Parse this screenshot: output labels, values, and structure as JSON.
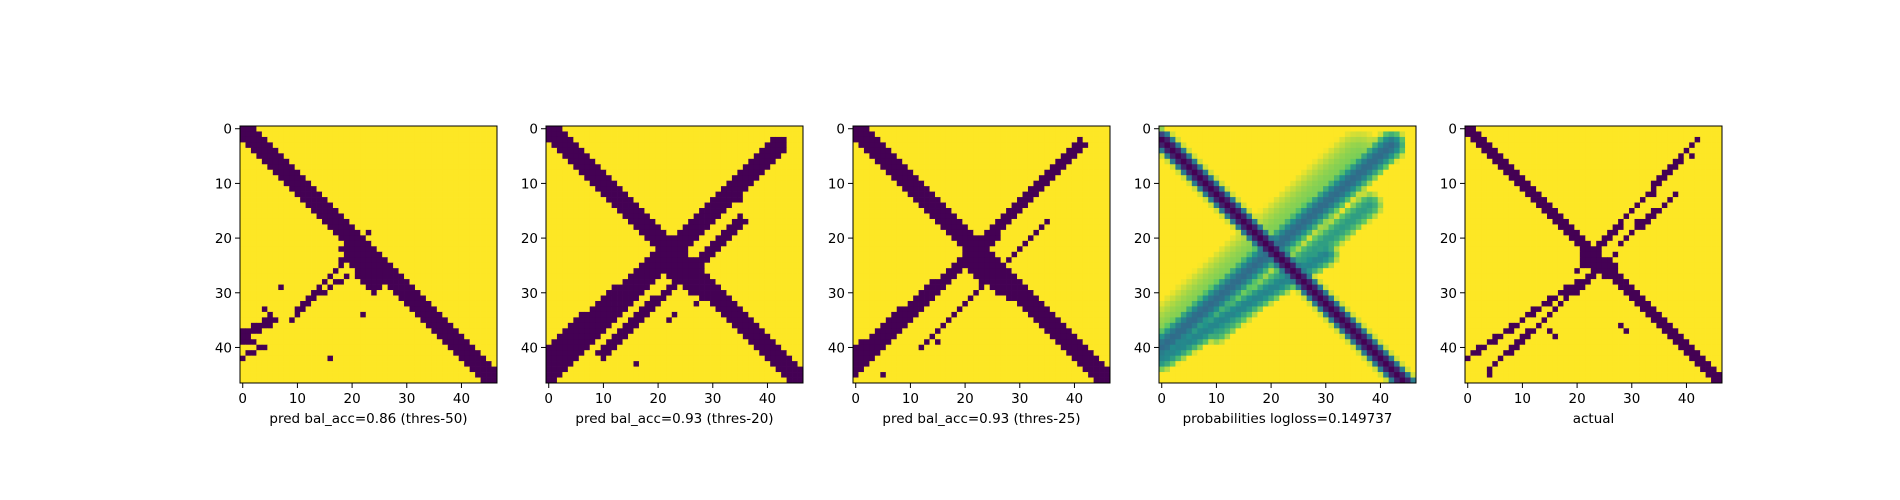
{
  "figure": {
    "background": "#ffffff"
  },
  "colormap": {
    "low": "#440154",
    "high": "#fde725"
  },
  "chart_data": [
    {
      "type": "heatmap",
      "xlabel": "pred bal_acc=0.86 (thres-50)",
      "grid_size": 47,
      "xlim": [
        -0.5,
        46.5
      ],
      "ylim": [
        46.5,
        -0.5
      ],
      "xticks": [
        0,
        10,
        20,
        30,
        40
      ],
      "yticks": [
        0,
        10,
        20,
        30,
        40
      ],
      "values": "binary prediction mask; dark = contact (0), yellow = 1",
      "bands": [
        {
          "from": [
            0,
            0
          ],
          "to": [
            46,
            46
          ],
          "width": 3,
          "value": 0
        },
        {
          "from": [
            20,
            22
          ],
          "to": [
            24,
            28
          ],
          "width": 4,
          "value": 0
        },
        {
          "from": [
            9,
            35
          ],
          "to": [
            23,
            19
          ],
          "width": 1,
          "value": 0
        },
        {
          "from": [
            0,
            38
          ],
          "to": [
            5,
            35
          ],
          "width": 2,
          "value": 0
        },
        {
          "from": [
            10,
            33
          ],
          "to": [
            19,
            27
          ],
          "width": 1,
          "value": 0
        },
        {
          "from": [
            0,
            42
          ],
          "to": [
            3,
            40
          ],
          "width": 1,
          "value": 0
        },
        {
          "from": [
            4,
            40
          ],
          "to": [
            1,
            39
          ],
          "width": 1,
          "value": 0
        }
      ],
      "spots": [
        [
          4,
          33
        ],
        [
          7,
          29
        ],
        [
          16,
          42
        ],
        [
          22,
          34
        ],
        [
          26,
          26
        ],
        [
          27,
          25
        ]
      ]
    },
    {
      "type": "heatmap",
      "xlabel": "pred bal_acc=0.93 (thres-20)",
      "grid_size": 47,
      "xlim": [
        -0.5,
        46.5
      ],
      "ylim": [
        46.5,
        -0.5
      ],
      "xticks": [
        0,
        10,
        20,
        30,
        40
      ],
      "yticks": [
        0,
        10,
        20,
        30,
        40
      ],
      "bands": [
        {
          "from": [
            0,
            0
          ],
          "to": [
            46,
            46
          ],
          "width": 4,
          "value": 0
        },
        {
          "from": [
            0,
            45
          ],
          "to": [
            42,
            3
          ],
          "width": 3,
          "value": 0
        },
        {
          "from": [
            0,
            41
          ],
          "to": [
            26,
            19
          ],
          "width": 3,
          "value": 0
        },
        {
          "from": [
            10,
            41
          ],
          "to": [
            35,
            17
          ],
          "width": 2,
          "value": 0
        },
        {
          "from": [
            22,
            25
          ],
          "to": [
            28,
            29
          ],
          "width": 4,
          "value": 0
        }
      ],
      "spots": [
        [
          16,
          43
        ],
        [
          23,
          34
        ],
        [
          27,
          32
        ],
        [
          22,
          35
        ],
        [
          35,
          13
        ]
      ]
    },
    {
      "type": "heatmap",
      "xlabel": "pred bal_acc=0.93 (thres-25)",
      "grid_size": 47,
      "xlim": [
        -0.5,
        46.5
      ],
      "ylim": [
        46.5,
        -0.5
      ],
      "xticks": [
        0,
        10,
        20,
        30,
        40
      ],
      "yticks": [
        0,
        10,
        20,
        30,
        40
      ],
      "bands": [
        {
          "from": [
            0,
            0
          ],
          "to": [
            46,
            46
          ],
          "width": 3,
          "value": 0
        },
        {
          "from": [
            0,
            44
          ],
          "to": [
            41,
            3
          ],
          "width": 2,
          "value": 0
        },
        {
          "from": [
            0,
            41
          ],
          "to": [
            25,
            20
          ],
          "width": 2,
          "value": 0
        },
        {
          "from": [
            12,
            40
          ],
          "to": [
            35,
            17
          ],
          "width": 1,
          "value": 0
        },
        {
          "from": [
            22,
            25
          ],
          "to": [
            28,
            29
          ],
          "width": 4,
          "value": 0
        }
      ],
      "spots": [
        [
          14,
          38
        ],
        [
          15,
          39
        ],
        [
          5,
          45
        ],
        [
          3,
          47
        ]
      ]
    },
    {
      "type": "heatmap",
      "xlabel": "probabilities logloss=0.149737",
      "grid_size": 47,
      "xlim": [
        -0.5,
        46.5
      ],
      "ylim": [
        46.5,
        -0.5
      ],
      "xticks": [
        0,
        10,
        20,
        30,
        40
      ],
      "yticks": [
        0,
        10,
        20,
        30,
        40
      ],
      "values": "continuous probabilities 0..1 rendered with viridis colormap",
      "bands": [
        {
          "from": [
            0,
            2
          ],
          "to": [
            45,
            47
          ],
          "width": 2.2,
          "value": 0.0
        },
        {
          "from": [
            0,
            40
          ],
          "to": [
            42,
            3
          ],
          "width": 3.0,
          "value": 0.35
        },
        {
          "from": [
            0,
            42
          ],
          "to": [
            30,
            23
          ],
          "width": 2.5,
          "value": 0.45
        },
        {
          "from": [
            10,
            37
          ],
          "to": [
            38,
            14
          ],
          "width": 2.5,
          "value": 0.55
        },
        {
          "from": [
            0,
            38
          ],
          "to": [
            36,
            5
          ],
          "width": 5,
          "value": 0.8
        }
      ]
    },
    {
      "type": "heatmap",
      "xlabel": "actual",
      "grid_size": 47,
      "xlim": [
        -0.5,
        46.5
      ],
      "ylim": [
        46.5,
        -0.5
      ],
      "xticks": [
        0,
        10,
        20,
        30,
        40
      ],
      "yticks": [
        0,
        10,
        20,
        30,
        40
      ],
      "bands": [
        {
          "from": [
            0,
            0
          ],
          "to": [
            46,
            46
          ],
          "width": 2,
          "value": 0
        },
        {
          "from": [
            0,
            42
          ],
          "to": [
            20,
            28
          ],
          "width": 1,
          "value": 0
        },
        {
          "from": [
            4,
            44
          ],
          "to": [
            27,
            23
          ],
          "width": 1,
          "value": 0
        },
        {
          "from": [
            20,
            26
          ],
          "to": [
            42,
            2
          ],
          "width": 1,
          "value": 0
        },
        {
          "from": [
            28,
            21
          ],
          "to": [
            38,
            12
          ],
          "width": 1,
          "value": 0
        },
        {
          "from": [
            22,
            24
          ],
          "to": [
            26,
            26
          ],
          "width": 3,
          "value": 0
        }
      ],
      "spots": [
        [
          40,
          4
        ],
        [
          41,
          5
        ],
        [
          35,
          9
        ],
        [
          34,
          12
        ],
        [
          31,
          17
        ],
        [
          32,
          18
        ],
        [
          28,
          36
        ],
        [
          29,
          37
        ],
        [
          15,
          37
        ],
        [
          16,
          38
        ],
        [
          5,
          43
        ],
        [
          4,
          45
        ]
      ]
    }
  ]
}
